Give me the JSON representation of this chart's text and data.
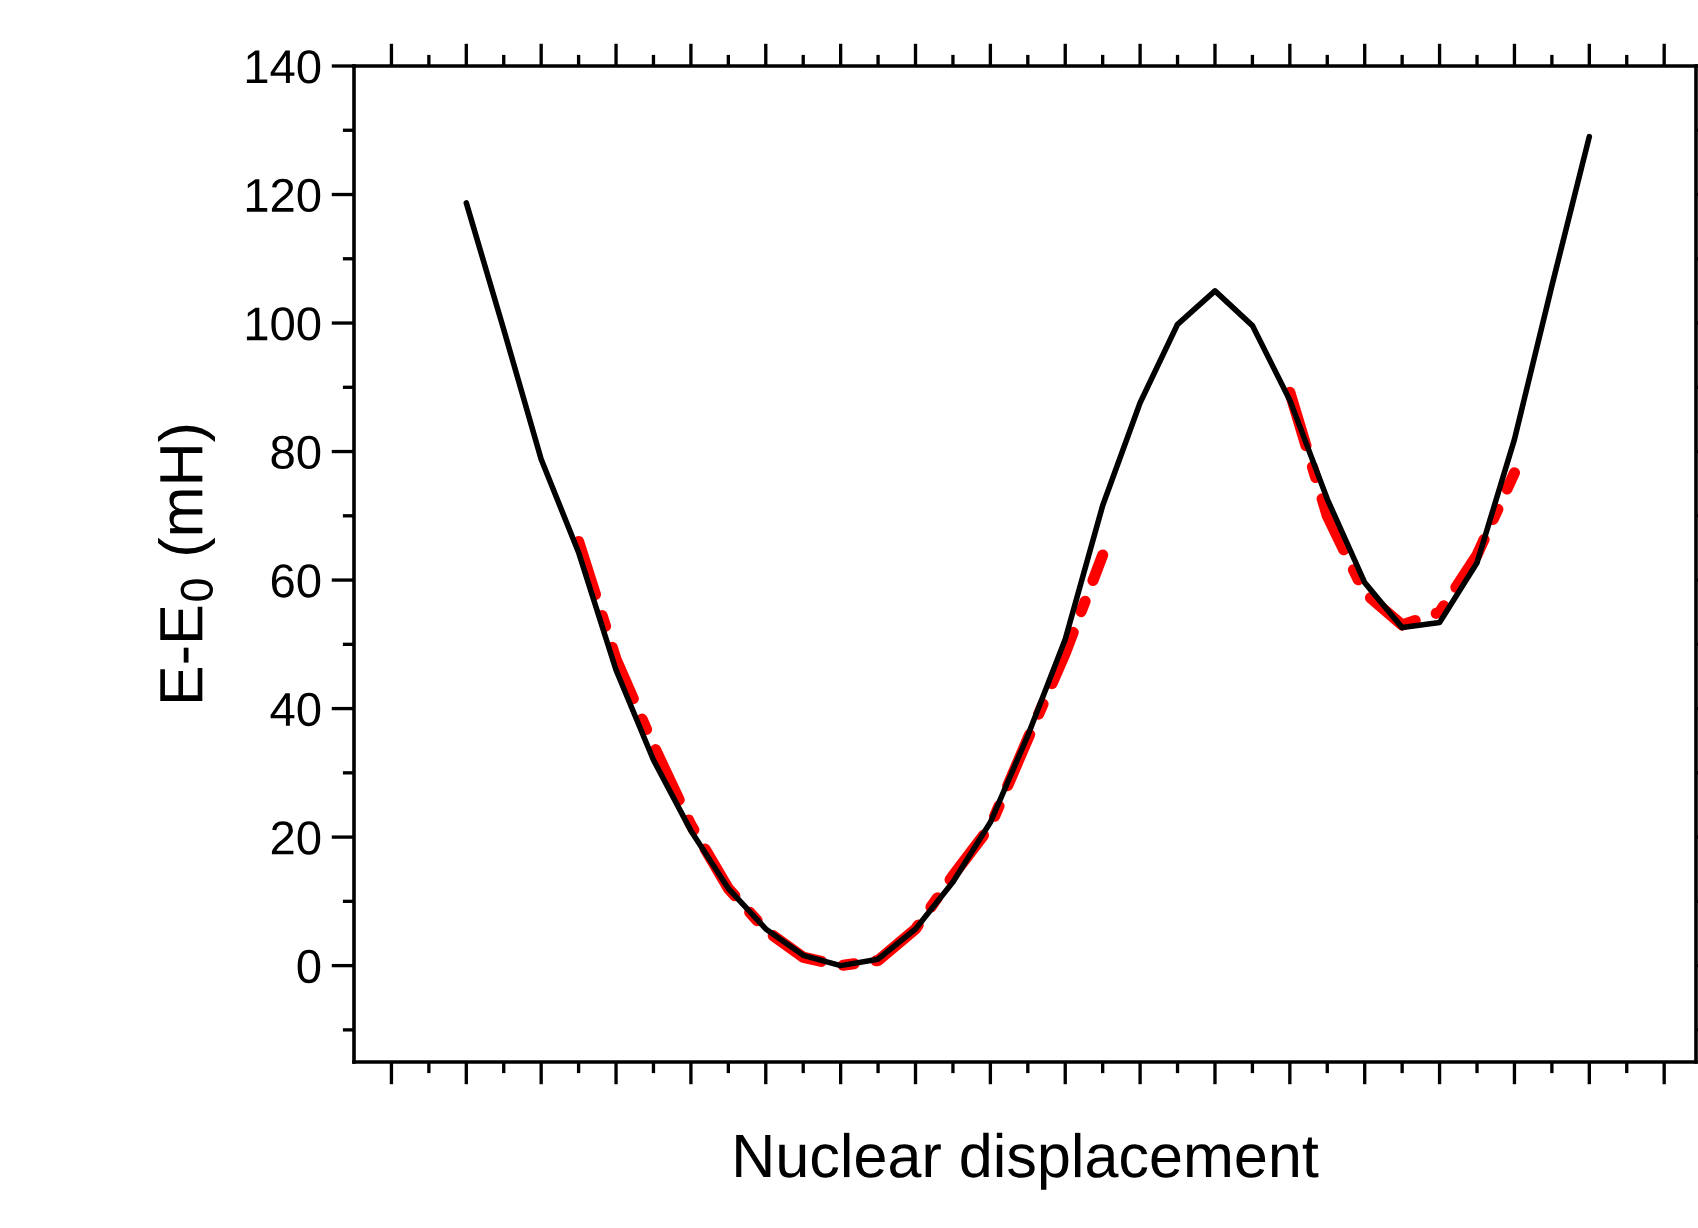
{
  "chart_data": {
    "type": "line",
    "xlabel": "Nuclear displacement",
    "ylabel": "E-E$_{0}$ (mH)",
    "categories": [
      null,
      null,
      null,
      null,
      null,
      null,
      null,
      null,
      null,
      null,
      null,
      null,
      null,
      null,
      null,
      null,
      null,
      null,
      null,
      null,
      null,
      null,
      null,
      null,
      null,
      null,
      null,
      null,
      null,
      null,
      null
    ],
    "series": [
      {
        "color": "#000000",
        "line_style": "solid",
        "values": [
          118.7,
          99,
          78.8,
          64.3,
          46,
          32,
          21,
          12,
          5.7,
          1.6,
          0,
          1,
          5.7,
          13,
          22.3,
          35.8,
          50.8,
          71.6,
          87.6,
          99.8,
          105,
          99.6,
          88,
          72.6,
          59.6,
          52.6,
          53.4,
          62.7,
          81.9,
          105.8,
          129
        ]
      },
      {
        "color": "#ff0000",
        "line_style": "dashed",
        "values": [
          null,
          null,
          null,
          66,
          47.7,
          34.3,
          21.9,
          12,
          5.5,
          1.3,
          0,
          0.8,
          5.7,
          14,
          21.7,
          35.3,
          48.6,
          63.9,
          null,
          null,
          null,
          null,
          89.2,
          70,
          58,
          53,
          55,
          63.9,
          76.7,
          null,
          null
        ]
      }
    ],
    "ylim": [
      -15,
      140
    ],
    "yticks": [
      0,
      20,
      40,
      60,
      80,
      100,
      120,
      140
    ],
    "tick_labels": "y",
    "grid": false
  }
}
